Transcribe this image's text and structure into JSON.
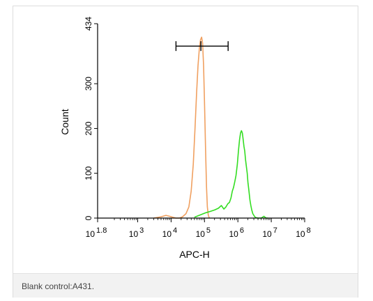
{
  "colors": {
    "control": "#f0a060",
    "sample": "#33dd22",
    "axis": "#000000",
    "marker": "#000000"
  },
  "chart_data": {
    "type": "line",
    "xlabel": "APC-H",
    "ylabel": "Count",
    "x_scale": "log",
    "xlim": [
      63,
      100000000
    ],
    "ylim": [
      0,
      434
    ],
    "x_ticks": [
      {
        "value": 63,
        "base": "10",
        "exp": "1.8"
      },
      {
        "value": 1000,
        "base": "10",
        "exp": "3"
      },
      {
        "value": 10000,
        "base": "10",
        "exp": "4"
      },
      {
        "value": 100000,
        "base": "10",
        "exp": "5"
      },
      {
        "value": 1000000,
        "base": "10",
        "exp": "6"
      },
      {
        "value": 10000000,
        "base": "10",
        "exp": "7"
      },
      {
        "value": 100000000,
        "base": "10",
        "exp": "8"
      }
    ],
    "y_ticks": [
      0,
      100,
      200,
      300,
      434
    ],
    "gate_marker": {
      "x_start": 14000,
      "x_mid": 78000,
      "x_end": 510000,
      "y": 384
    },
    "series": [
      {
        "color_key": "control",
        "x": [
          3000,
          5000,
          7000,
          9000,
          11000,
          14000,
          18000,
          22000,
          28000,
          34000,
          40000,
          46000,
          52000,
          58000,
          64000,
          70000,
          76000,
          82000,
          88000,
          94000,
          100000,
          108000,
          115000,
          122000,
          130000,
          140000
        ],
        "y": [
          0,
          3,
          6,
          4,
          2,
          0,
          0,
          3,
          10,
          25,
          60,
          120,
          200,
          280,
          340,
          378,
          398,
          404,
          390,
          340,
          260,
          150,
          70,
          25,
          6,
          0
        ]
      },
      {
        "color_key": "sample",
        "x": [
          50000,
          80000,
          110000,
          150000,
          200000,
          260000,
          320000,
          380000,
          440000,
          500000,
          560000,
          620000,
          680000,
          740000,
          800000,
          880000,
          960000,
          1040000,
          1120000,
          1200000,
          1280000,
          1360000,
          1440000,
          1520000,
          1600000,
          1700000,
          1800000,
          1900000,
          2000000,
          2150000,
          2300000,
          2450000,
          2600000,
          2800000,
          3000000,
          3200000,
          3500000,
          4000000,
          5000000,
          6000000,
          7000000,
          8000000
        ],
        "y": [
          2,
          8,
          12,
          15,
          18,
          22,
          28,
          20,
          25,
          32,
          35,
          45,
          60,
          68,
          80,
          95,
          120,
          150,
          175,
          190,
          195,
          190,
          175,
          160,
          150,
          130,
          115,
          100,
          80,
          60,
          40,
          28,
          18,
          10,
          6,
          3,
          1,
          0,
          0,
          4,
          0,
          0
        ]
      }
    ]
  },
  "caption": {
    "text": "Blank control:A431."
  }
}
